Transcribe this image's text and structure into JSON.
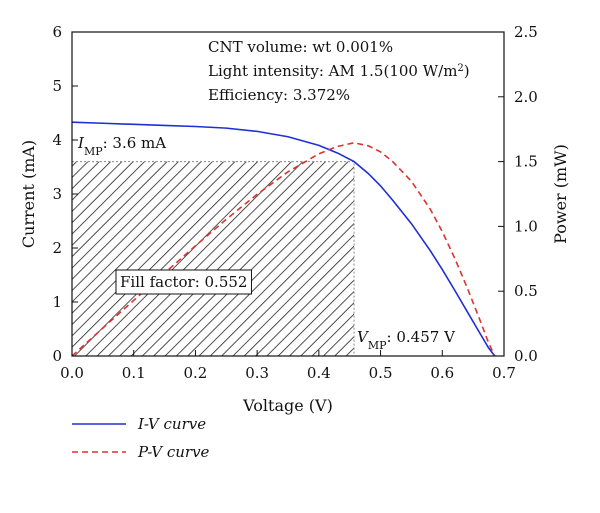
{
  "chart_data": {
    "type": "line",
    "xlabel": "Voltage (V)",
    "ylabel": "Current (mA)",
    "y2label": "Power (mW)",
    "xlim": [
      0,
      0.7
    ],
    "ylim": [
      0,
      6
    ],
    "y2lim": [
      0,
      2.5
    ],
    "xticks": [
      "0.0",
      "0.1",
      "0.2",
      "0.3",
      "0.4",
      "0.5",
      "0.6",
      "0.7"
    ],
    "yticks": [
      "0",
      "1",
      "2",
      "3",
      "4",
      "5",
      "6"
    ],
    "y2ticks": [
      "0.0",
      "0.5",
      "1.0",
      "1.5",
      "2.0",
      "2.5"
    ],
    "grid": false,
    "legend_position": "bottom-left",
    "series": [
      {
        "name": "I-V curve",
        "axis": "left",
        "color": "#1f2fd6",
        "style": "solid",
        "x": [
          0.0,
          0.05,
          0.1,
          0.15,
          0.2,
          0.25,
          0.3,
          0.35,
          0.4,
          0.43,
          0.457,
          0.48,
          0.5,
          0.52,
          0.55,
          0.58,
          0.6,
          0.62,
          0.64,
          0.66,
          0.675,
          0.685
        ],
        "y": [
          4.33,
          4.31,
          4.29,
          4.27,
          4.25,
          4.22,
          4.16,
          4.06,
          3.9,
          3.76,
          3.6,
          3.38,
          3.15,
          2.88,
          2.45,
          1.96,
          1.6,
          1.22,
          0.83,
          0.44,
          0.15,
          0.0
        ]
      },
      {
        "name": "P-V curve",
        "axis": "right",
        "color": "#e03030",
        "style": "dashed",
        "x": [
          0.0,
          0.05,
          0.1,
          0.15,
          0.2,
          0.25,
          0.3,
          0.35,
          0.4,
          0.43,
          0.457,
          0.48,
          0.5,
          0.52,
          0.55,
          0.58,
          0.6,
          0.62,
          0.64,
          0.66,
          0.675,
          0.685
        ],
        "y": [
          0.0,
          0.216,
          0.429,
          0.64,
          0.85,
          1.055,
          1.248,
          1.421,
          1.56,
          1.617,
          1.645,
          1.622,
          1.575,
          1.498,
          1.348,
          1.137,
          0.96,
          0.756,
          0.531,
          0.29,
          0.101,
          0.0
        ]
      }
    ],
    "max_power_point": {
      "voltage": 0.457,
      "current": 3.6
    },
    "annotations": {
      "line1": "CNT volume: wt 0.001%",
      "line2_prefix": "Light intensity: AM 1.5(100 W/m",
      "line2_sup": "2",
      "line2_suffix": ")",
      "line3": "Efficiency: 3.372%",
      "imp_symbol": "I",
      "imp_sub": "MP",
      "imp_value": ": 3.6 mA",
      "vmp_symbol": "V",
      "vmp_sub": "MP",
      "vmp_value": ": 0.457 V",
      "fill_factor": "Fill factor: 0.552"
    },
    "legend": [
      {
        "label": "I-V curve",
        "color": "#1f2fd6",
        "style": "solid"
      },
      {
        "label": "P-V curve",
        "color": "#e03030",
        "style": "dashed"
      }
    ]
  }
}
